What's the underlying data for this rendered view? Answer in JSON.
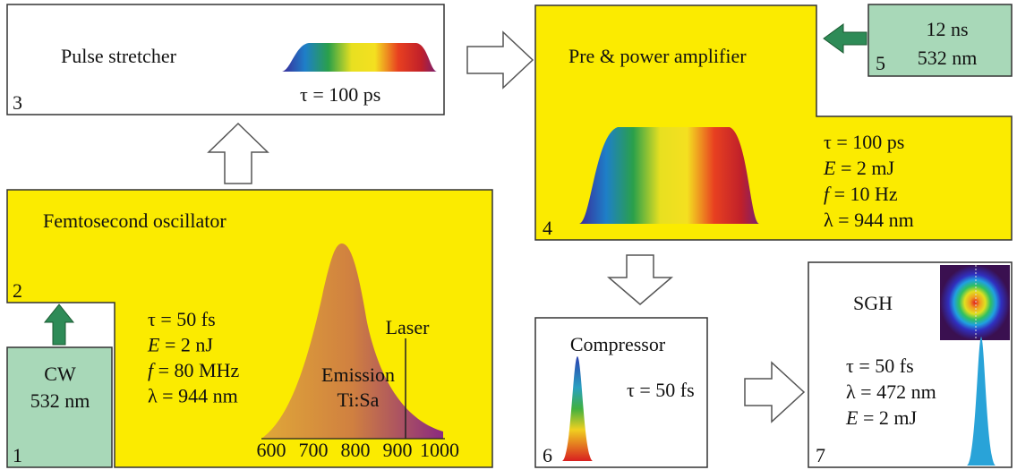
{
  "oscillator_pump": {
    "number": "1",
    "lines": [
      "CW",
      "532 nm"
    ]
  },
  "oscillator": {
    "number": "2",
    "title": "Femtosecond oscillator",
    "params": [
      {
        "symbol": "τ",
        "rest": " = 50 fs"
      },
      {
        "symbol": "E",
        "rest": " = 2 nJ"
      },
      {
        "symbol": "f",
        "rest": " = 80 MHz"
      },
      {
        "symbol": "λ",
        "rest": " = 944 nm"
      }
    ],
    "plot": {
      "emission": "Emission",
      "material": "Ti:Sa",
      "laser": "Laser",
      "ticks": [
        600,
        700,
        800,
        900,
        1000
      ]
    }
  },
  "stretcher": {
    "number": "3",
    "title": "Pulse stretcher",
    "params": [
      {
        "symbol": "τ",
        "rest": " = 100 ps"
      }
    ]
  },
  "amplifier": {
    "number": "4",
    "title": "Pre & power amplifier",
    "params": [
      {
        "symbol": "τ",
        "rest": " = 100 ps"
      },
      {
        "symbol": "E",
        "rest": " = 2 mJ"
      },
      {
        "symbol": "f",
        "rest": " = 10 Hz"
      },
      {
        "symbol": "λ",
        "rest": " = 944 nm"
      }
    ]
  },
  "amplifier_pump": {
    "number": "5",
    "lines": [
      "12 ns",
      "532 nm"
    ]
  },
  "compressor": {
    "number": "6",
    "title": "Compressor",
    "params": [
      {
        "symbol": "τ",
        "rest": " = 50 fs"
      }
    ]
  },
  "sgh": {
    "number": "7",
    "title": "SGH",
    "params": [
      {
        "symbol": "τ",
        "rest": " = 50 fs"
      },
      {
        "symbol": "λ",
        "rest": " = 472 nm"
      },
      {
        "symbol": "E",
        "rest": " = 2 mJ"
      }
    ]
  }
}
